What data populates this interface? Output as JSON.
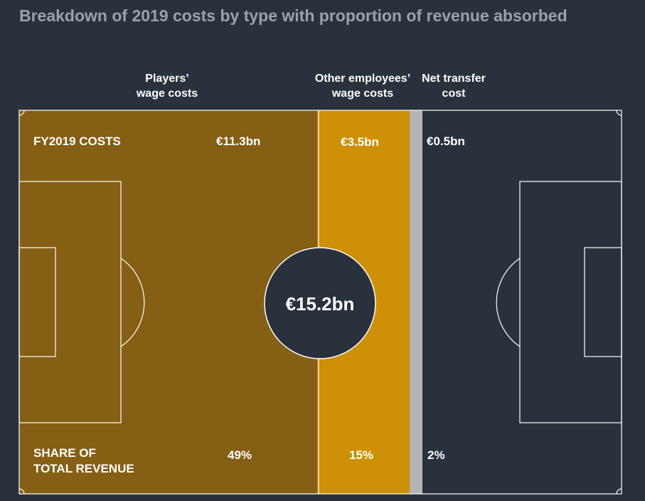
{
  "title": "Breakdown of 2019 costs by type with proportion of revenue absorbed",
  "labels": {
    "costs_row": "FY2019 COSTS",
    "share_row_line1": "SHARE OF",
    "share_row_line2": "TOTAL REVENUE",
    "total": "€15.2bn"
  },
  "colors": {
    "background": "#29313d",
    "players": "#845f14",
    "other_employees": "#cd9006",
    "separator": "#b4b4b4",
    "pitch_lines": "#ffffff"
  },
  "chart_data": {
    "type": "bar",
    "orientation": "horizontal-stacked",
    "total_label": "€15.2bn",
    "categories": [
      {
        "name_line1": "Players’",
        "name_line2": "wage costs",
        "cost": 11.3,
        "cost_label": "€11.3bn",
        "share_label": "49%",
        "share": 49
      },
      {
        "name_line1": "Other employees’",
        "name_line2": "wage costs",
        "cost": 3.5,
        "cost_label": "€3.5bn",
        "share_label": "15%",
        "share": 15
      },
      {
        "name_line1": "Net transfer",
        "name_line2": "cost",
        "cost": 0.5,
        "cost_label": "€0.5bn",
        "share_label": "2%",
        "share": 2
      }
    ]
  }
}
